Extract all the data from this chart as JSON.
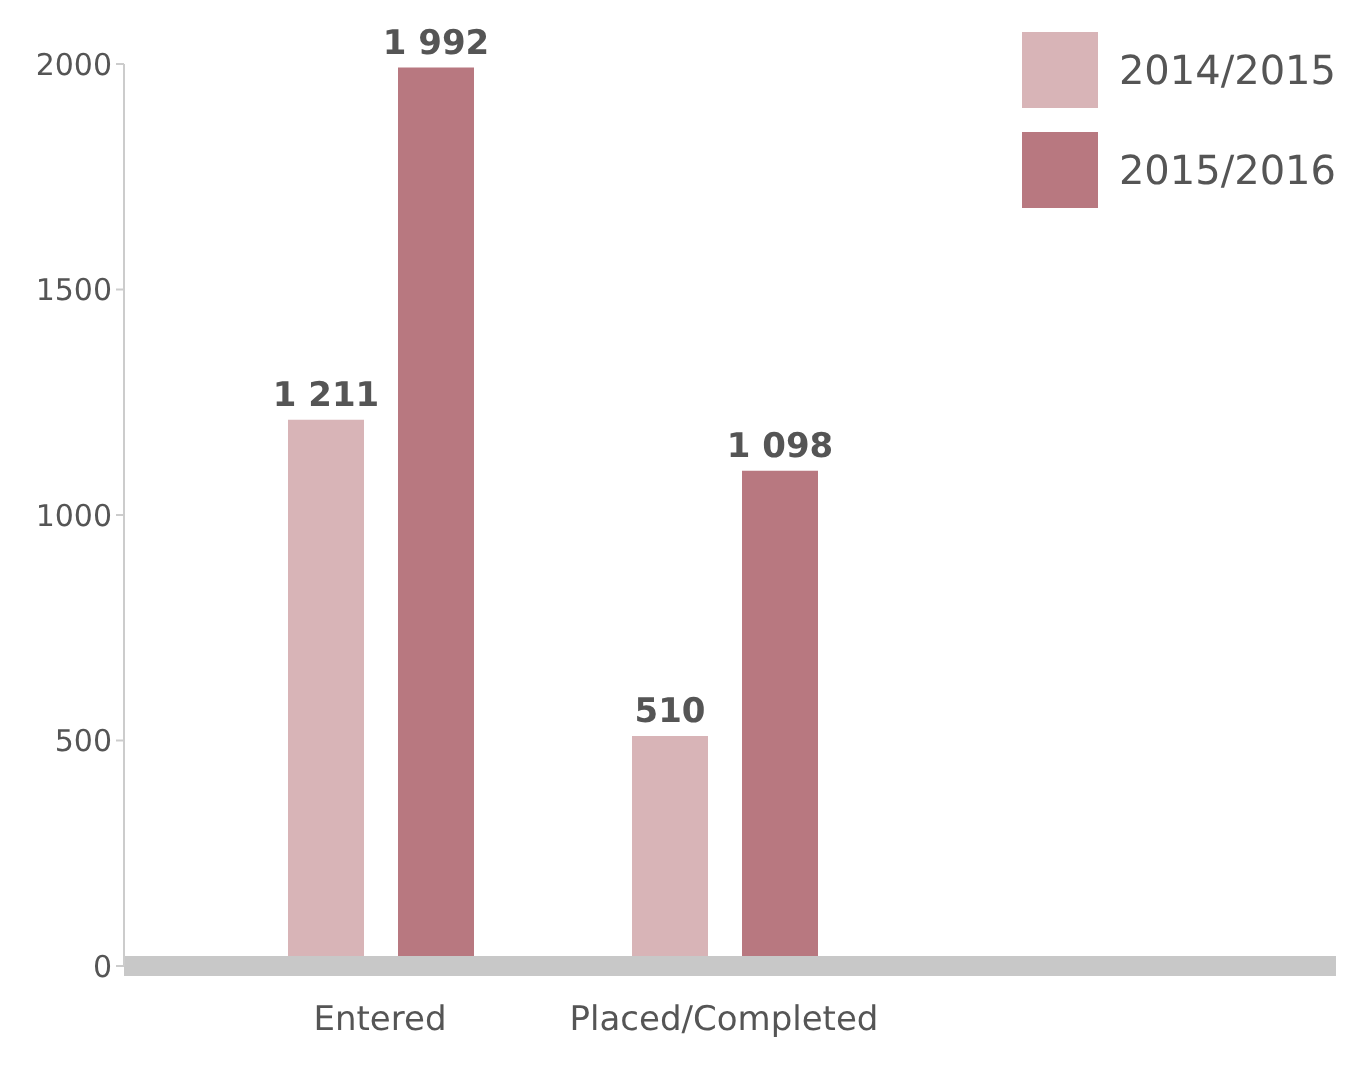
{
  "chart_data": {
    "type": "bar",
    "categories": [
      "Entered",
      "Placed/Completed"
    ],
    "series": [
      {
        "name": "2014/2015",
        "color": "#d8b4b7",
        "values": [
          1211,
          510
        ],
        "value_labels": [
          "1 211",
          "510"
        ]
      },
      {
        "name": "2015/2016",
        "color": "#b87880",
        "values": [
          1992,
          1098
        ],
        "value_labels": [
          "1 992",
          "1 098"
        ]
      }
    ],
    "ylim": [
      0,
      2000
    ],
    "yticks": [
      0,
      500,
      1000,
      1500,
      2000
    ],
    "grid": false,
    "legend": "top right"
  }
}
